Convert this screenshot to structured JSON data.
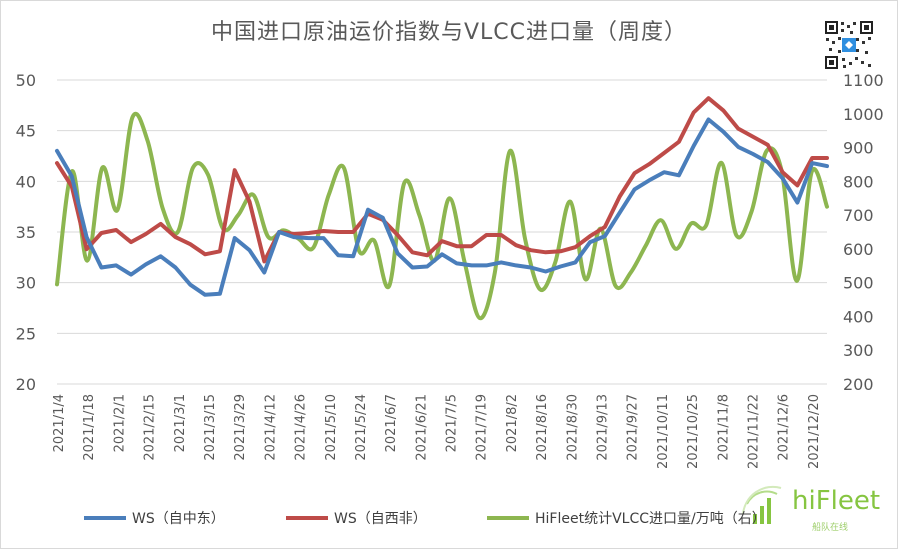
{
  "title": "中国进口原油运价指数与VLCC进口量（周度）",
  "logo": {
    "text": "hiFleet",
    "subtext": "船队在线"
  },
  "colors": {
    "ws_me": "#4a7ebb",
    "ws_wa": "#be4b48",
    "volume": "#8db650",
    "grid": "#d9d9d9",
    "axis_text": "#595959"
  },
  "chart_data": {
    "type": "line",
    "title": "中国进口原油运价指数与VLCC进口量（周度）",
    "x_tick_labels": [
      "2021/1/4",
      "2021/1/18",
      "2021/2/1",
      "2021/2/15",
      "2021/3/1",
      "2021/3/15",
      "2021/3/29",
      "2021/4/12",
      "2021/4/26",
      "2021/5/10",
      "2021/5/24",
      "2021/6/7",
      "2021/6/21",
      "2021/7/5",
      "2021/7/19",
      "2021/8/2",
      "2021/8/16",
      "2021/8/30",
      "2021/9/13",
      "2021/9/27",
      "2021/10/11",
      "2021/10/25",
      "2021/11/8",
      "2021/11/22",
      "2021/12/6",
      "2021/12/20"
    ],
    "y_left": {
      "min": 20,
      "max": 50,
      "ticks": [
        20,
        25,
        30,
        35,
        40,
        45,
        50
      ]
    },
    "y_right": {
      "min": 200,
      "max": 1100,
      "ticks": [
        200,
        300,
        400,
        500,
        600,
        700,
        800,
        900,
        1000,
        1100
      ]
    },
    "grid": true,
    "legend_position": "bottom",
    "series": [
      {
        "name": "WS（自中东）",
        "axis": "left",
        "color": "#4a7ebb",
        "smooth": false,
        "values": [
          43.0,
          40.5,
          34.5,
          31.5,
          31.7,
          30.8,
          31.8,
          32.6,
          31.5,
          29.8,
          28.8,
          28.9,
          34.4,
          33.2,
          31.0,
          35.0,
          34.5,
          34.4,
          34.4,
          32.7,
          32.6,
          37.2,
          36.4,
          32.9,
          31.5,
          31.6,
          32.8,
          31.9,
          31.7,
          31.7,
          32.0,
          31.7,
          31.5,
          31.1,
          31.6,
          32.0,
          34.0,
          34.6,
          36.9,
          39.2,
          40.1,
          40.9,
          40.6,
          43.5,
          46.1,
          44.9,
          43.4,
          42.7,
          41.9,
          40.3,
          37.9,
          41.8,
          41.5
        ]
      },
      {
        "name": "WS（自西非）",
        "axis": "left",
        "color": "#be4b48",
        "smooth": false,
        "values": [
          41.8,
          39.5,
          33.3,
          34.9,
          35.2,
          34.0,
          34.8,
          35.8,
          34.5,
          33.8,
          32.8,
          33.1,
          41.1,
          38.0,
          32.1,
          35.0,
          34.8,
          34.9,
          35.1,
          35.0,
          35.0,
          36.8,
          36.2,
          34.7,
          33.0,
          32.7,
          34.1,
          33.6,
          33.6,
          34.7,
          34.7,
          33.7,
          33.2,
          33.0,
          33.1,
          33.5,
          34.6,
          35.5,
          38.5,
          40.8,
          41.7,
          42.8,
          43.9,
          46.8,
          48.2,
          47.0,
          45.2,
          44.4,
          43.6,
          40.9,
          39.6,
          42.3,
          42.3
        ]
      },
      {
        "name": "HiFleet统计VLCC进口量/万吨（右）",
        "axis": "right",
        "color": "#8db650",
        "smooth": true,
        "values": [
          495,
          830,
          565,
          840,
          715,
          990,
          920,
          720,
          650,
          840,
          820,
          660,
          700,
          760,
          635,
          655,
          630,
          605,
          760,
          840,
          595,
          625,
          490,
          795,
          700,
          565,
          750,
          560,
          395,
          530,
          890,
          630,
          480,
          560,
          740,
          510,
          660,
          490,
          530,
          610,
          685,
          600,
          675,
          670,
          855,
          640,
          710,
          890,
          830,
          505,
          830,
          725
        ]
      }
    ]
  }
}
